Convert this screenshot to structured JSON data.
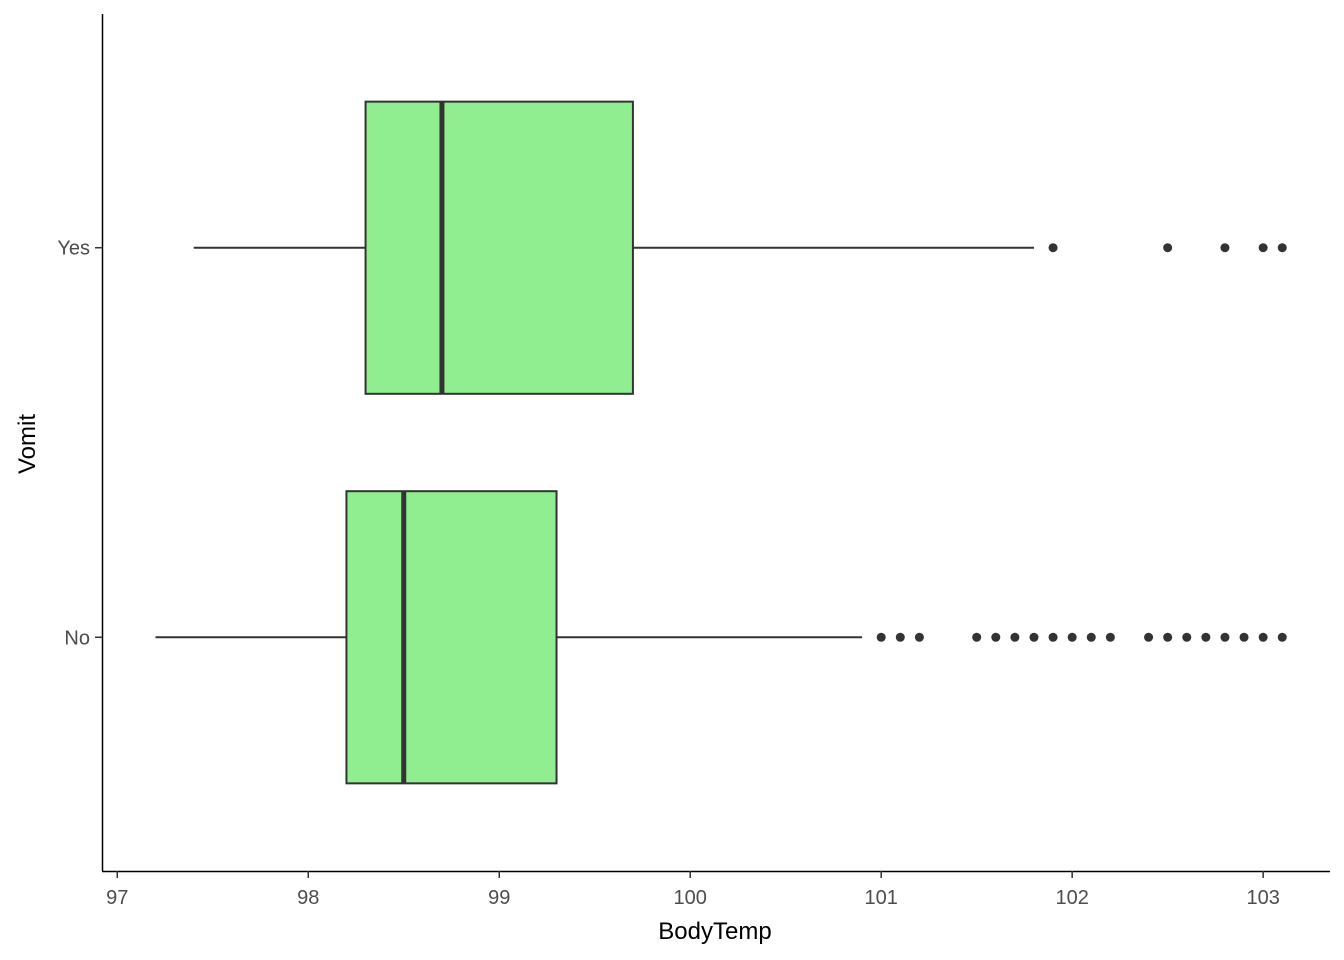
{
  "chart_data": {
    "type": "boxplot",
    "orientation": "horizontal",
    "title": "",
    "xlabel": "BodyTemp",
    "ylabel": "Vomit",
    "xlim": [
      96.92,
      103.35
    ],
    "x_ticks": [
      97,
      98,
      99,
      100,
      101,
      102,
      103
    ],
    "x_tick_labels": [
      "97",
      "98",
      "99",
      "100",
      "101",
      "102",
      "103"
    ],
    "categories": [
      "No",
      "Yes"
    ],
    "fill_color": "#90EE90",
    "line_color": "#333333",
    "boxes": [
      {
        "category": "No",
        "whisker_low": 97.2,
        "q1": 98.2,
        "median": 98.5,
        "q3": 99.3,
        "whisker_high": 100.9,
        "outliers": [
          101.0,
          101.1,
          101.2,
          101.5,
          101.6,
          101.7,
          101.8,
          101.9,
          102.0,
          102.1,
          102.2,
          102.4,
          102.5,
          102.6,
          102.7,
          102.8,
          102.9,
          103.0,
          103.1
        ]
      },
      {
        "category": "Yes",
        "whisker_low": 97.4,
        "q1": 98.3,
        "median": 98.7,
        "q3": 99.7,
        "whisker_high": 101.8,
        "outliers": [
          101.9,
          102.5,
          102.8,
          103.0,
          103.1
        ]
      }
    ]
  }
}
